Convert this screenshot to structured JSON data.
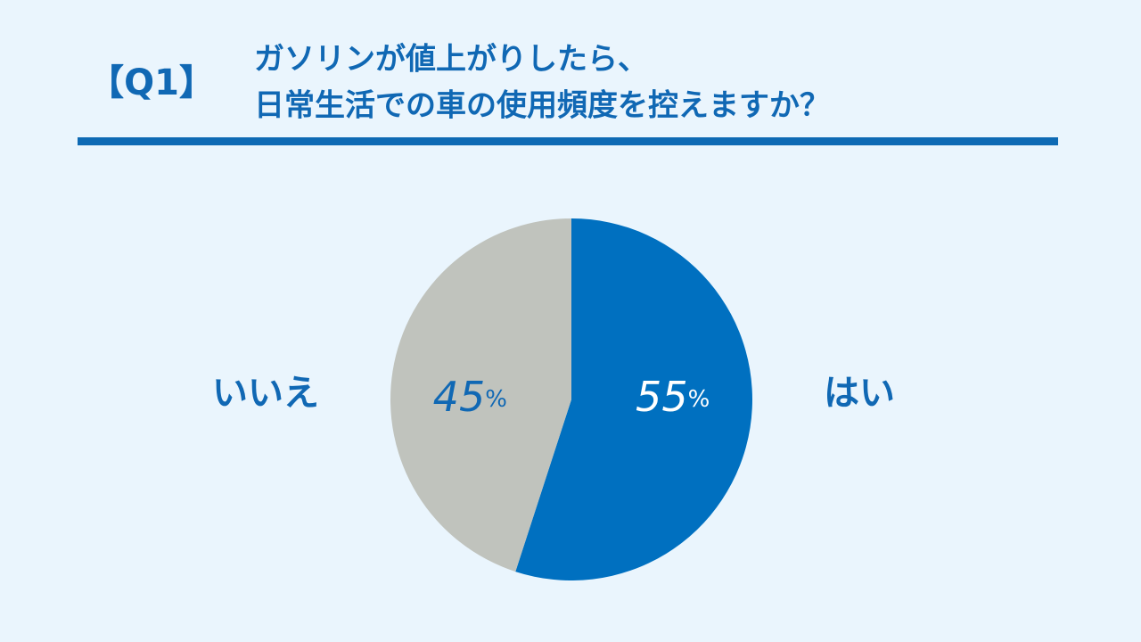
{
  "chart_data": {
    "type": "pie",
    "question_label": "【Q1】",
    "title": [
      "ガソリンが値上がりしたら、",
      "日常生活での車の使用頻度を控えますか？"
    ],
    "categories": [
      "はい",
      "いいえ"
    ],
    "values": [
      55,
      45
    ],
    "value_labels": [
      "55%",
      "45%"
    ],
    "colors": [
      "#0070c0",
      "#c0c3bd"
    ]
  }
}
